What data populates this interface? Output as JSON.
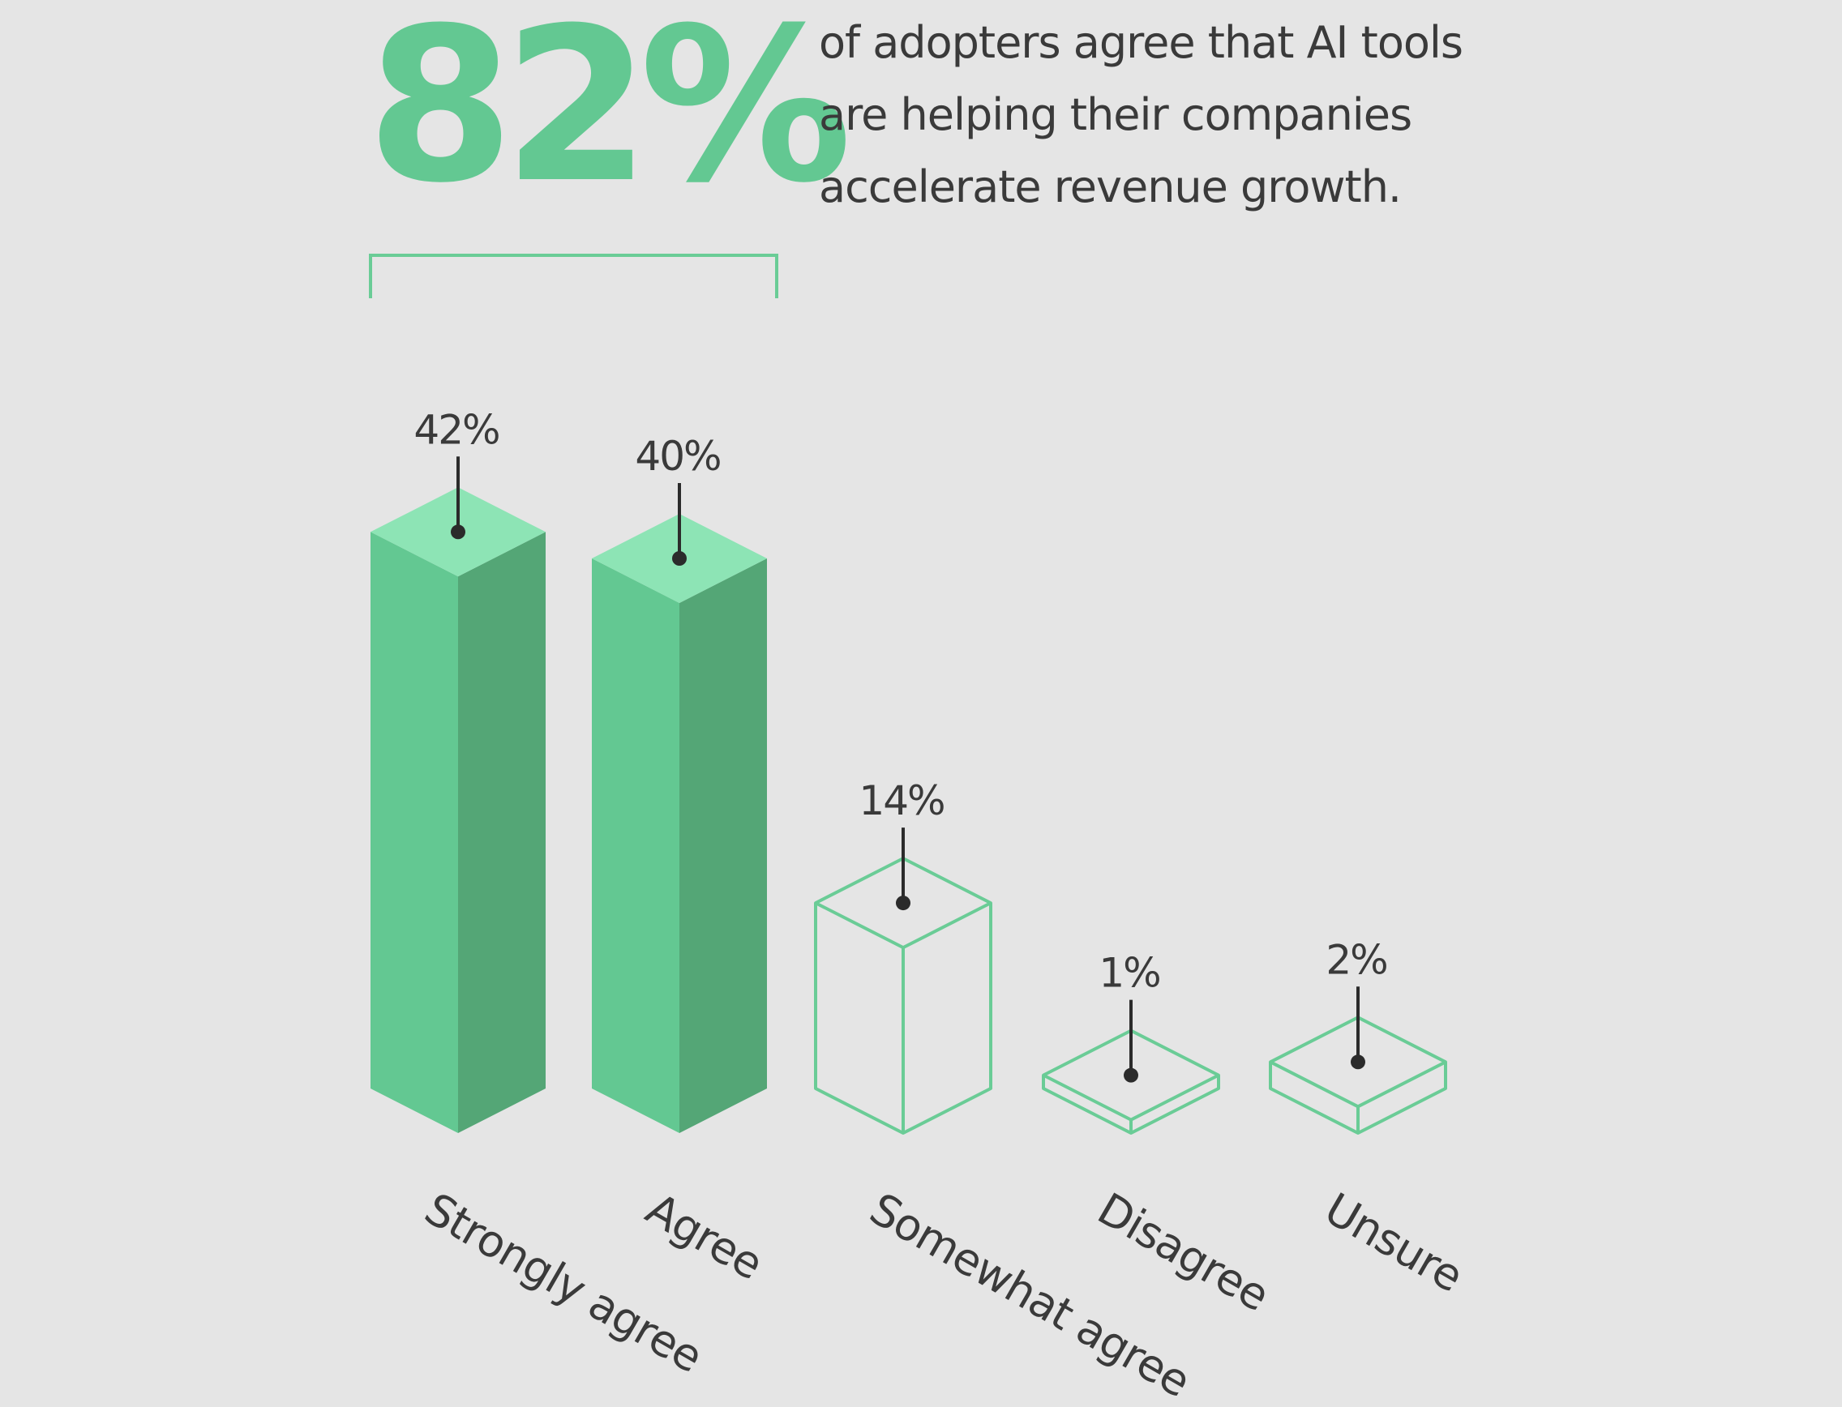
{
  "headline": {
    "value": "82%",
    "lines": [
      "of adopters agree that AI tools",
      "are helping their companies",
      "accelerate revenue growth."
    ]
  },
  "colors": {
    "background": "#e5e5e5",
    "accent": "#63c892",
    "accent_top": "#8de4b5",
    "accent_dark": "#54a676",
    "outline": "#6acc96",
    "text": "#3a3a3a",
    "marker": "#2b2b2b"
  },
  "chart_data": {
    "type": "bar",
    "style": "isometric 3D columns",
    "categories": [
      "Strongly agree",
      "Agree",
      "Somewhat agree",
      "Disagree",
      "Unsure"
    ],
    "values": [
      42,
      40,
      14,
      1,
      2
    ],
    "labels": [
      "42%",
      "40%",
      "14%",
      "1%",
      "2%"
    ],
    "fill": [
      "solid",
      "solid",
      "outline",
      "outline",
      "outline"
    ],
    "bracket_groups": [
      "Strongly agree",
      "Agree"
    ],
    "unit": "%",
    "grid": false,
    "legend": "none"
  }
}
